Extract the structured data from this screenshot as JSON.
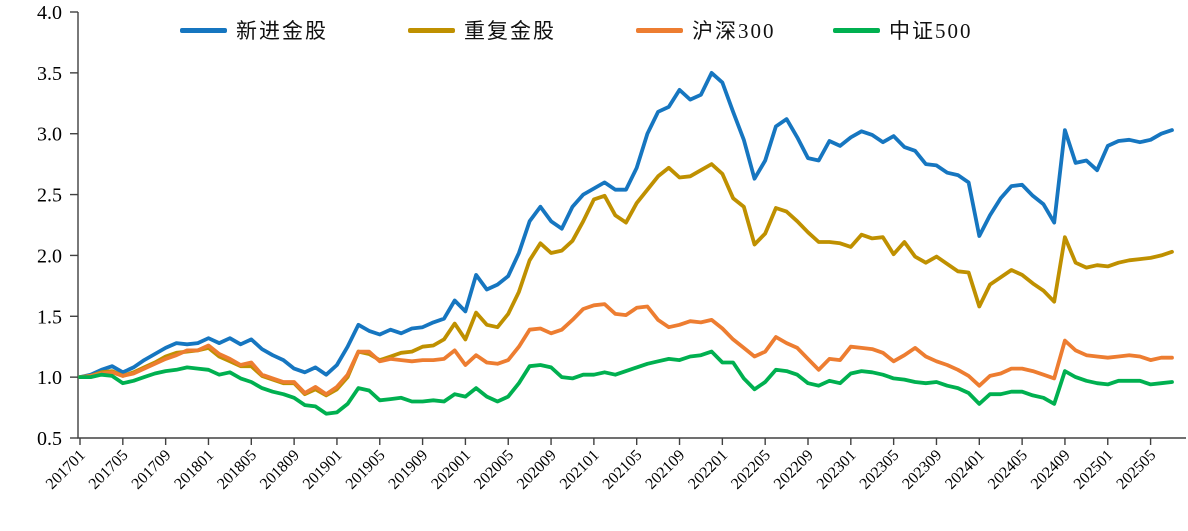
{
  "chart_data": {
    "type": "line",
    "title": "",
    "xlabel": "",
    "ylabel": "",
    "ylim": [
      0.5,
      4.0
    ],
    "y_ticks": [
      4.0,
      3.5,
      3.0,
      2.5,
      2.0,
      1.5,
      1.0,
      0.5
    ],
    "x_tick_every": 4,
    "grid": false,
    "legend_position": "top",
    "axis_color": "#404040",
    "x": [
      "201701",
      "201702",
      "201703",
      "201704",
      "201705",
      "201706",
      "201707",
      "201708",
      "201709",
      "201710",
      "201711",
      "201712",
      "201801",
      "201802",
      "201803",
      "201804",
      "201805",
      "201806",
      "201807",
      "201808",
      "201809",
      "201810",
      "201811",
      "201812",
      "201901",
      "201902",
      "201903",
      "201904",
      "201905",
      "201906",
      "201907",
      "201908",
      "201909",
      "201910",
      "201911",
      "201912",
      "202001",
      "202002",
      "202003",
      "202004",
      "202005",
      "202006",
      "202007",
      "202008",
      "202009",
      "202010",
      "202011",
      "202012",
      "202101",
      "202102",
      "202103",
      "202104",
      "202105",
      "202106",
      "202107",
      "202108",
      "202109",
      "202110",
      "202111",
      "202112",
      "202201",
      "202202",
      "202203",
      "202204",
      "202205",
      "202206",
      "202207",
      "202208",
      "202209",
      "202210",
      "202211",
      "202212",
      "202301",
      "202302",
      "202303",
      "202304",
      "202305",
      "202306",
      "202307",
      "202308",
      "202309",
      "202310",
      "202311",
      "202312",
      "202401",
      "202402",
      "202403",
      "202404",
      "202405",
      "202406",
      "202407",
      "202408",
      "202409",
      "202410",
      "202411",
      "202412",
      "202501",
      "202502",
      "202503",
      "202504",
      "202505",
      "202506",
      "202507"
    ],
    "series": [
      {
        "name": "新进金股",
        "color": "#1676c0",
        "values": [
          1.0,
          1.02,
          1.06,
          1.09,
          1.04,
          1.08,
          1.14,
          1.19,
          1.24,
          1.28,
          1.27,
          1.28,
          1.32,
          1.28,
          1.32,
          1.27,
          1.31,
          1.23,
          1.18,
          1.14,
          1.07,
          1.04,
          1.08,
          1.02,
          1.1,
          1.25,
          1.43,
          1.38,
          1.35,
          1.39,
          1.36,
          1.4,
          1.41,
          1.45,
          1.48,
          1.63,
          1.54,
          1.84,
          1.72,
          1.76,
          1.83,
          2.02,
          2.28,
          2.4,
          2.28,
          2.22,
          2.4,
          2.5,
          2.55,
          2.6,
          2.54,
          2.54,
          2.72,
          3.0,
          3.18,
          3.22,
          3.36,
          3.28,
          3.32,
          3.5,
          3.42,
          3.18,
          2.95,
          2.63,
          2.78,
          3.06,
          3.12,
          2.97,
          2.8,
          2.78,
          2.94,
          2.9,
          2.97,
          3.02,
          2.99,
          2.93,
          2.98,
          2.89,
          2.86,
          2.75,
          2.74,
          2.68,
          2.66,
          2.6,
          2.16,
          2.33,
          2.47,
          2.57,
          2.58,
          2.49,
          2.42,
          2.27,
          3.03,
          2.76,
          2.78,
          2.7,
          2.9,
          2.94,
          2.95,
          2.93,
          2.95,
          3.0,
          3.03
        ]
      },
      {
        "name": "重复金股",
        "color": "#bf9000",
        "values": [
          1.0,
          1.01,
          1.04,
          1.05,
          1.01,
          1.04,
          1.08,
          1.12,
          1.17,
          1.2,
          1.21,
          1.22,
          1.24,
          1.17,
          1.13,
          1.09,
          1.09,
          1.01,
          0.98,
          0.95,
          0.95,
          0.86,
          0.9,
          0.85,
          0.9,
          1.0,
          1.21,
          1.19,
          1.14,
          1.17,
          1.2,
          1.21,
          1.25,
          1.26,
          1.31,
          1.44,
          1.31,
          1.53,
          1.43,
          1.41,
          1.52,
          1.7,
          1.96,
          2.1,
          2.02,
          2.04,
          2.12,
          2.28,
          2.46,
          2.49,
          2.33,
          2.27,
          2.43,
          2.54,
          2.65,
          2.72,
          2.64,
          2.65,
          2.7,
          2.75,
          2.67,
          2.47,
          2.4,
          2.09,
          2.18,
          2.39,
          2.36,
          2.28,
          2.19,
          2.11,
          2.11,
          2.1,
          2.07,
          2.17,
          2.14,
          2.15,
          2.01,
          2.11,
          1.99,
          1.94,
          1.99,
          1.93,
          1.87,
          1.86,
          1.58,
          1.76,
          1.82,
          1.88,
          1.84,
          1.77,
          1.71,
          1.62,
          2.15,
          1.94,
          1.9,
          1.92,
          1.91,
          1.94,
          1.96,
          1.97,
          1.98,
          2.0,
          2.03
        ]
      },
      {
        "name": "沪深300",
        "color": "#ed7d31",
        "values": [
          1.0,
          1.01,
          1.03,
          1.04,
          1.01,
          1.03,
          1.07,
          1.11,
          1.15,
          1.18,
          1.22,
          1.22,
          1.26,
          1.19,
          1.15,
          1.1,
          1.12,
          1.02,
          0.99,
          0.96,
          0.96,
          0.87,
          0.92,
          0.86,
          0.92,
          1.02,
          1.21,
          1.21,
          1.13,
          1.15,
          1.14,
          1.13,
          1.14,
          1.14,
          1.15,
          1.22,
          1.1,
          1.18,
          1.12,
          1.11,
          1.14,
          1.25,
          1.39,
          1.4,
          1.36,
          1.39,
          1.47,
          1.56,
          1.59,
          1.6,
          1.52,
          1.51,
          1.57,
          1.58,
          1.47,
          1.41,
          1.43,
          1.46,
          1.45,
          1.47,
          1.4,
          1.31,
          1.24,
          1.17,
          1.21,
          1.33,
          1.28,
          1.24,
          1.15,
          1.06,
          1.15,
          1.14,
          1.25,
          1.24,
          1.23,
          1.2,
          1.13,
          1.18,
          1.24,
          1.17,
          1.13,
          1.1,
          1.06,
          1.01,
          0.93,
          1.01,
          1.03,
          1.07,
          1.07,
          1.05,
          1.02,
          0.99,
          1.3,
          1.22,
          1.18,
          1.17,
          1.16,
          1.17,
          1.18,
          1.17,
          1.14,
          1.16,
          1.16
        ]
      },
      {
        "name": "中证500",
        "color": "#00b050",
        "values": [
          1.0,
          1.0,
          1.02,
          1.01,
          0.95,
          0.97,
          1.0,
          1.03,
          1.05,
          1.06,
          1.08,
          1.07,
          1.06,
          1.02,
          1.04,
          0.99,
          0.96,
          0.91,
          0.88,
          0.86,
          0.83,
          0.77,
          0.76,
          0.7,
          0.71,
          0.78,
          0.91,
          0.89,
          0.81,
          0.82,
          0.83,
          0.8,
          0.8,
          0.81,
          0.8,
          0.86,
          0.84,
          0.91,
          0.84,
          0.8,
          0.84,
          0.95,
          1.09,
          1.1,
          1.08,
          1.0,
          0.99,
          1.02,
          1.02,
          1.04,
          1.02,
          1.05,
          1.08,
          1.11,
          1.13,
          1.15,
          1.14,
          1.17,
          1.18,
          1.21,
          1.12,
          1.12,
          0.99,
          0.9,
          0.96,
          1.06,
          1.05,
          1.02,
          0.95,
          0.93,
          0.97,
          0.95,
          1.03,
          1.05,
          1.04,
          1.02,
          0.99,
          0.98,
          0.96,
          0.95,
          0.96,
          0.93,
          0.91,
          0.87,
          0.78,
          0.86,
          0.86,
          0.88,
          0.88,
          0.85,
          0.83,
          0.78,
          1.05,
          1.0,
          0.97,
          0.95,
          0.94,
          0.97,
          0.97,
          0.97,
          0.94,
          0.95,
          0.96
        ]
      }
    ]
  }
}
